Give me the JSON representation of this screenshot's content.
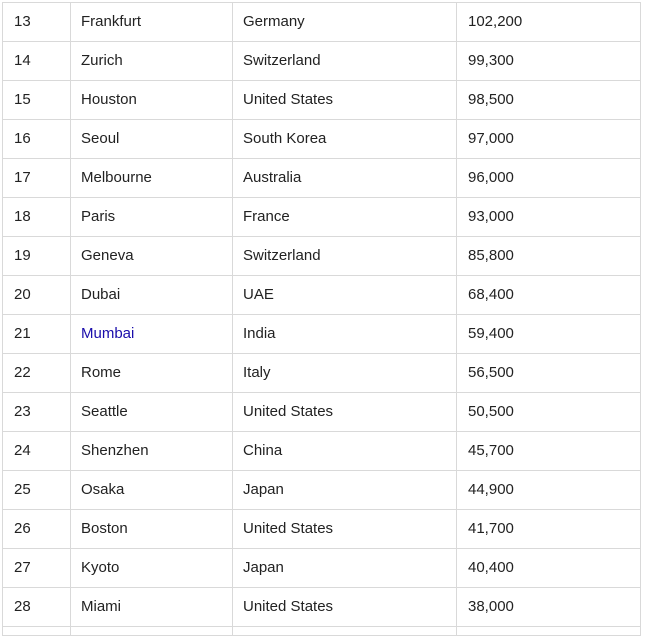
{
  "table": {
    "rows": [
      {
        "rank": "13",
        "city": "Frankfurt",
        "country": "Germany",
        "value": "102,200"
      },
      {
        "rank": "14",
        "city": "Zurich",
        "country": "Switzerland",
        "value": "99,300"
      },
      {
        "rank": "15",
        "city": "Houston",
        "country": "United States",
        "value": "98,500"
      },
      {
        "rank": "16",
        "city": "Seoul",
        "country": "South Korea",
        "value": "97,000"
      },
      {
        "rank": "17",
        "city": "Melbourne",
        "country": "Australia",
        "value": "96,000"
      },
      {
        "rank": "18",
        "city": "Paris",
        "country": "France",
        "value": "93,000"
      },
      {
        "rank": "19",
        "city": "Geneva",
        "country": "Switzerland",
        "value": "85,800"
      },
      {
        "rank": "20",
        "city": "Dubai",
        "country": "UAE",
        "value": "68,400"
      },
      {
        "rank": "21",
        "city": "Mumbai",
        "country": "India",
        "value": "59,400",
        "city_is_link": true
      },
      {
        "rank": "22",
        "city": "Rome",
        "country": "Italy",
        "value": "56,500"
      },
      {
        "rank": "23",
        "city": "Seattle",
        "country": "United States",
        "value": "50,500"
      },
      {
        "rank": "24",
        "city": "Shenzhen",
        "country": "China",
        "value": "45,700"
      },
      {
        "rank": "25",
        "city": "Osaka",
        "country": "Japan",
        "value": "44,900"
      },
      {
        "rank": "26",
        "city": "Boston",
        "country": "United States",
        "value": "41,700"
      },
      {
        "rank": "27",
        "city": "Kyoto",
        "country": "Japan",
        "value": "40,400"
      },
      {
        "rank": "28",
        "city": "Miami",
        "country": "United States",
        "value": "38,000"
      }
    ]
  },
  "colors": {
    "link": "#1a0dab",
    "text": "#222222",
    "border": "#d9d9d9"
  }
}
